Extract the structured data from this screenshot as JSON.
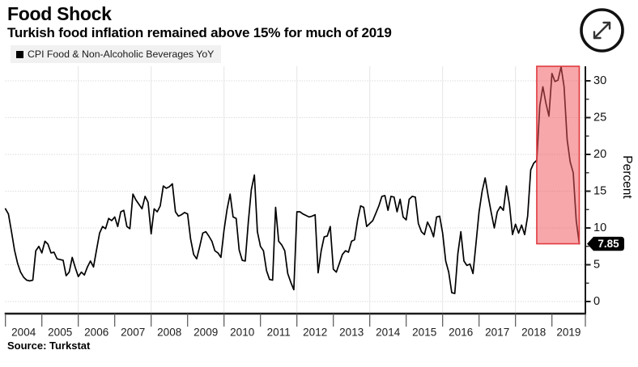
{
  "header": {
    "title": "Food Shock",
    "subtitle": "Turkish food inflation remained above 15% for much of 2019"
  },
  "legend": {
    "label": "CPI Food & Non-Alcoholic Beverages YoY"
  },
  "source": {
    "text": "Source: Turkstat"
  },
  "colors": {
    "line": "#000000",
    "grid_h": "#cccccc",
    "grid_v": "#e4e4e4",
    "axis": "#1a1a1a",
    "highlight_fill": "#ef575c",
    "highlight_stroke": "#e03a3f",
    "tag_bg": "#000000",
    "tag_text": "#ffffff",
    "legend_bg": "#f1f1f1"
  },
  "chart_data": {
    "type": "line",
    "title": "Food Shock",
    "subtitle": "Turkish food inflation remained above 15% for much of 2019",
    "ylabel": "Percent",
    "legend": [
      "CPI Food & Non-Alcoholic Beverages YoY"
    ],
    "legend_position": "top-left",
    "grid": true,
    "ylim": [
      -1.65,
      32.0
    ],
    "y_ticks_major": [
      0,
      5,
      10,
      15,
      20,
      25,
      30
    ],
    "y_minor_step": 2.5,
    "x_year_labels": [
      "2004",
      "2005",
      "2006",
      "2007",
      "2008",
      "2009",
      "2010",
      "2011",
      "2012",
      "2013",
      "2014",
      "2015",
      "2016",
      "2017",
      "2018",
      "2019"
    ],
    "x_gridline_years": [
      2006,
      2008,
      2010,
      2012,
      2014,
      2016,
      2018
    ],
    "series": [
      {
        "name": "CPI Food & Non-Alcoholic Beverages YoY",
        "start_year": 2004,
        "start_month": 1,
        "frequency": "monthly",
        "values": [
          12.6,
          11.9,
          9.5,
          7.0,
          5.2,
          4.0,
          3.3,
          2.9,
          2.8,
          2.9,
          6.9,
          7.5,
          6.6,
          8.2,
          7.8,
          6.6,
          6.7,
          5.8,
          5.7,
          5.6,
          3.5,
          4.0,
          6.0,
          4.6,
          3.4,
          4.0,
          3.6,
          4.7,
          5.5,
          4.7,
          7.0,
          9.3,
          10.2,
          9.9,
          11.3,
          11.0,
          11.5,
          10.2,
          12.2,
          12.4,
          10.2,
          9.9,
          14.6,
          13.8,
          13.2,
          12.6,
          14.3,
          13.5,
          9.2,
          12.6,
          12.2,
          13.0,
          15.7,
          15.4,
          15.6,
          16.0,
          12.2,
          11.6,
          11.8,
          12.1,
          11.9,
          8.5,
          6.4,
          5.8,
          7.5,
          9.3,
          9.5,
          8.9,
          8.2,
          6.9,
          6.6,
          6.0,
          9.7,
          12.5,
          14.6,
          11.5,
          11.3,
          7.0,
          5.6,
          5.5,
          10.8,
          15.2,
          17.2,
          9.5,
          7.5,
          6.9,
          4.2,
          3.0,
          2.9,
          12.8,
          8.2,
          7.7,
          6.9,
          3.8,
          2.6,
          1.6,
          12.2,
          12.2,
          11.9,
          11.7,
          11.5,
          11.6,
          11.8,
          3.9,
          6.9,
          8.8,
          8.9,
          10.2,
          4.4,
          4.0,
          5.2,
          6.4,
          6.9,
          6.7,
          8.2,
          8.4,
          11.1,
          13.0,
          12.8,
          10.2,
          10.6,
          11.0,
          12.0,
          13.0,
          14.3,
          14.4,
          12.4,
          14.3,
          14.2,
          12.2,
          13.9,
          11.5,
          11.1,
          13.9,
          14.3,
          14.2,
          10.6,
          9.5,
          9.1,
          10.8,
          10.0,
          8.8,
          11.5,
          11.6,
          9.3,
          5.5,
          4.0,
          1.2,
          1.1,
          6.5,
          9.5,
          5.5,
          4.9,
          5.1,
          3.8,
          8.0,
          12.2,
          15.0,
          16.8,
          14.3,
          12.1,
          10.0,
          12.2,
          12.9,
          12.4,
          15.7,
          13.2,
          9.1,
          10.5,
          9.3,
          10.4,
          9.1,
          11.6,
          17.9,
          18.8,
          19.2,
          26.6,
          29.2,
          27.0,
          25.2,
          31.0,
          29.9,
          30.1,
          31.9,
          29.2,
          22.0,
          19.0,
          17.5,
          11.0,
          7.85
        ]
      }
    ],
    "highlight_region": {
      "start_year": 2018,
      "start_month": 8,
      "end_year": 2019,
      "end_month": 10,
      "bottom_value": 7.85,
      "top_value": 32.0
    },
    "last_value_label": "7.85"
  }
}
